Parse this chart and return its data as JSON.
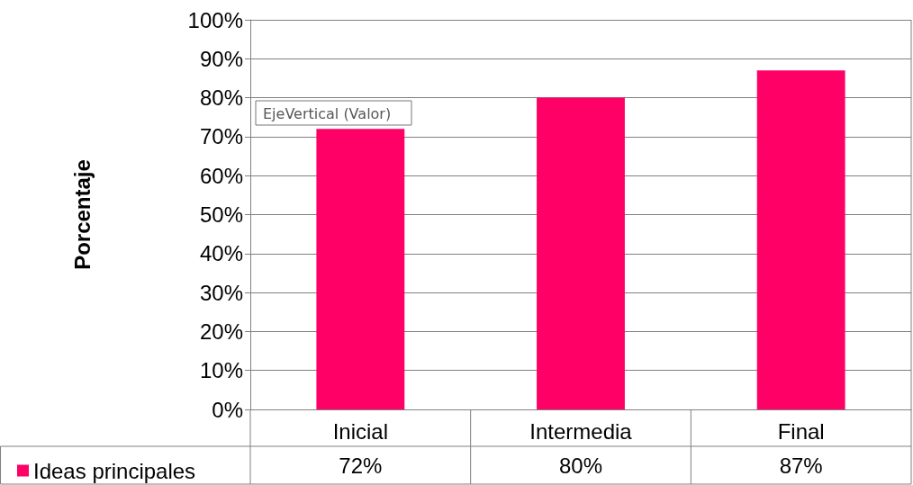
{
  "chart_data": {
    "type": "bar",
    "ylabel": "Porcentaje",
    "categories": [
      "Inicial",
      "Intermedia",
      "Final"
    ],
    "series": [
      {
        "name": "Ideas principales",
        "color": "#ff0066",
        "values": [
          72,
          80,
          87
        ],
        "value_labels": [
          "72%",
          "80%",
          "87%"
        ]
      }
    ],
    "ylim": [
      0,
      100
    ],
    "yticks": [
      {
        "value": 0,
        "label": "0%"
      },
      {
        "value": 10,
        "label": "10%"
      },
      {
        "value": 20,
        "label": "20%"
      },
      {
        "value": 30,
        "label": "30%"
      },
      {
        "value": 40,
        "label": "40%"
      },
      {
        "value": 50,
        "label": "50%"
      },
      {
        "value": 60,
        "label": "60%"
      },
      {
        "value": 70,
        "label": "70%"
      },
      {
        "value": 80,
        "label": "80%"
      },
      {
        "value": 90,
        "label": "90%"
      },
      {
        "value": 100,
        "label": "100%"
      }
    ],
    "grid": "y",
    "legend": "bottom left",
    "annotations": [
      "EjeVertical (Valor)"
    ]
  }
}
